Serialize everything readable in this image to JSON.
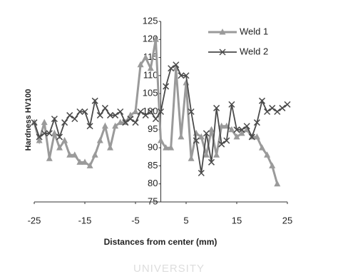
{
  "chart_data": {
    "type": "line",
    "xlabel": "Distances from center  (mm)",
    "ylabel": "Hardness HV100",
    "annotations": [
      "UNIVERSITY"
    ],
    "x": [
      -25,
      -24,
      -23,
      -22,
      -21,
      -20,
      -19,
      -18,
      -17,
      -16,
      -15,
      -14,
      -13,
      -12,
      -11,
      -10,
      -9,
      -8,
      -7,
      -6,
      -5,
      -4,
      -3,
      -2,
      -1,
      0,
      1,
      2,
      3,
      4,
      5,
      6,
      7,
      8,
      9,
      10,
      11,
      12,
      13,
      14,
      15,
      16,
      17,
      18,
      19,
      20,
      21,
      22,
      23,
      24,
      25
    ],
    "series": [
      {
        "name": "Weld 1",
        "color": "#9a9a9a",
        "marker": "triangle",
        "values": [
          97,
          92,
          97,
          87,
          94,
          90,
          92,
          88,
          88,
          86,
          86,
          85,
          88,
          92,
          96,
          90,
          96,
          97,
          97,
          99,
          100,
          113,
          115,
          112,
          120,
          92,
          90,
          90,
          112,
          93,
          108,
          87,
          94,
          93,
          88,
          95,
          88,
          96,
          96,
          95,
          93,
          94,
          95,
          93,
          93,
          90,
          88,
          85,
          80,
          null,
          null
        ]
      },
      {
        "name": "Weld 2",
        "color": "#4a4a4a",
        "marker": "x",
        "values": [
          97,
          93,
          94,
          94,
          98,
          93,
          97,
          99,
          98,
          100,
          100,
          96,
          103,
          99,
          101,
          99,
          99,
          100,
          97,
          98,
          97,
          100,
          99,
          100,
          98,
          100,
          107,
          112,
          113,
          110,
          110,
          100,
          92,
          83,
          94,
          86,
          101,
          91,
          92,
          102,
          95,
          95,
          96,
          93,
          97,
          103,
          100,
          101,
          100,
          101,
          102
        ]
      }
    ],
    "xlim": [
      -25,
      25
    ],
    "xticks": [
      -25,
      -15,
      -5,
      5,
      15,
      25
    ],
    "ylim": [
      75,
      125
    ],
    "yticks": [
      75,
      80,
      85,
      90,
      95,
      100,
      105,
      110,
      115,
      120,
      125
    ],
    "grid": false,
    "legend": "upper right"
  }
}
